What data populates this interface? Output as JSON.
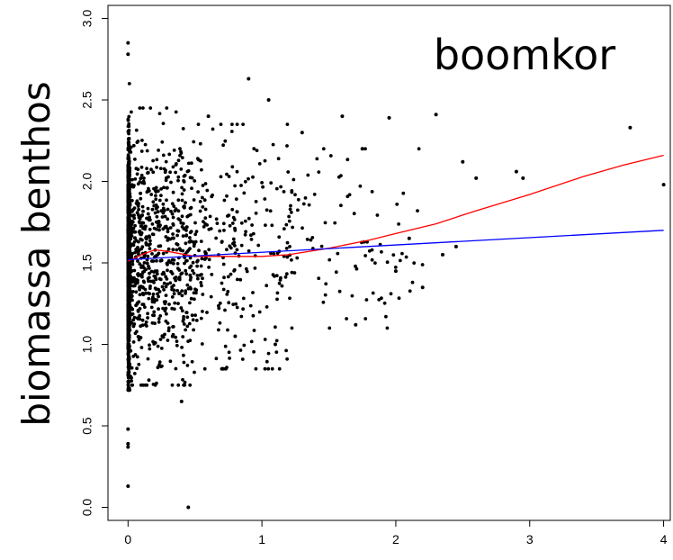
{
  "chart_data": {
    "type": "scatter",
    "title": "",
    "xlabel": "",
    "ylabel": "biomassa benthos",
    "annotation": "boomkor",
    "xlim": [
      -0.15,
      4.05
    ],
    "ylim": [
      -0.08,
      3.08
    ],
    "xticks": [
      0,
      1,
      2,
      3,
      4
    ],
    "yticks": [
      0.0,
      0.5,
      1.0,
      1.5,
      2.0,
      2.5,
      3.0
    ],
    "xtick_labels": [
      "0",
      "1",
      "2",
      "3",
      "4"
    ],
    "ytick_labels": [
      "0.0",
      "0.5",
      "1.0",
      "1.5",
      "2.0",
      "2.5",
      "3.0"
    ],
    "grid": false,
    "colors": {
      "points": "#000000",
      "smooth_line": "#ff0000",
      "linear_fit": "#0000ff"
    },
    "points_notable": {
      "x": [
        0,
        0,
        0,
        0,
        0,
        0,
        0.45,
        0.9,
        1.05,
        1.3,
        1.6,
        1.75,
        1.95,
        2.1,
        2.2,
        2.3,
        2.35,
        2.45,
        2.5,
        2.9,
        2.95,
        3.75,
        4.0,
        2.6,
        2.0,
        1.7,
        1.1,
        0.8,
        0.4,
        0.6
      ],
      "y": [
        2.85,
        2.78,
        0.39,
        0.37,
        0.13,
        0.48,
        0.0,
        2.63,
        2.5,
        2.3,
        2.4,
        2.2,
        2.39,
        1.65,
        1.35,
        2.41,
        1.55,
        1.6,
        2.12,
        2.06,
        2.02,
        2.33,
        1.98,
        2.02,
        1.45,
        1.12,
        1.0,
        1.05,
        0.65,
        2.4
      ]
    },
    "points_cloud": {
      "count": 2400,
      "segments": [
        {
          "x_range": [
            0,
            0.02
          ],
          "y_mean": 1.52,
          "y_sd": 0.34,
          "y_range": [
            0.72,
            2.6
          ],
          "weight": 0.58
        },
        {
          "x_range": [
            0.02,
            0.5
          ],
          "y_mean": 1.54,
          "y_sd": 0.37,
          "y_range": [
            0.75,
            2.45
          ],
          "weight": 0.28
        },
        {
          "x_range": [
            0.5,
            1.2
          ],
          "y_mean": 1.55,
          "y_sd": 0.38,
          "y_range": [
            0.85,
            2.35
          ],
          "weight": 0.1
        },
        {
          "x_range": [
            1.2,
            2.2
          ],
          "y_mean": 1.65,
          "y_sd": 0.33,
          "y_range": [
            1.1,
            2.2
          ],
          "weight": 0.04
        }
      ]
    },
    "series": [
      {
        "type": "line",
        "color": "#ff0000",
        "x": [
          0,
          0.1,
          0.2,
          0.3,
          0.5,
          0.8,
          1.0,
          1.2,
          1.5,
          1.8,
          2.0,
          2.3,
          2.6,
          3.0,
          3.4,
          3.7,
          4.0
        ],
        "y": [
          1.51,
          1.55,
          1.58,
          1.57,
          1.54,
          1.54,
          1.54,
          1.55,
          1.59,
          1.64,
          1.68,
          1.74,
          1.82,
          1.92,
          2.03,
          2.1,
          2.16
        ]
      },
      {
        "type": "line",
        "color": "#0000ff",
        "x": [
          0,
          4.0
        ],
        "y": [
          1.52,
          1.7
        ]
      }
    ]
  }
}
